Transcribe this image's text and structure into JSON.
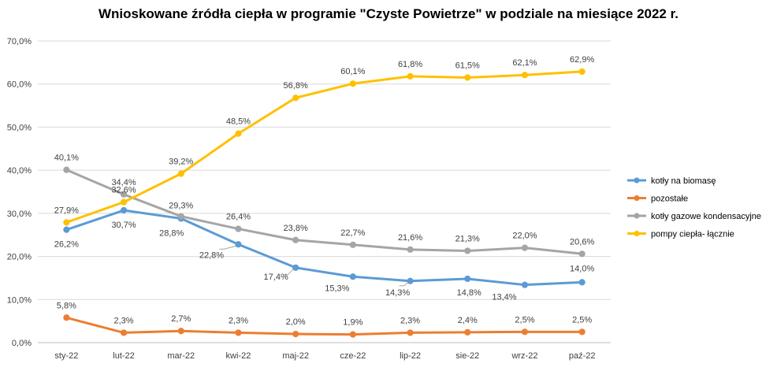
{
  "chart_data": {
    "type": "line",
    "title": "Wnioskowane źródła ciepła w programie \"Czyste Powietrze\" w podziale na miesiące 2022 r.",
    "xlabel": "",
    "ylabel": "",
    "categories": [
      "sty-22",
      "lut-22",
      "mar-22",
      "kwi-22",
      "maj-22",
      "cze-22",
      "lip-22",
      "sie-22",
      "wrz-22",
      "paź-22"
    ],
    "ylim": [
      0,
      70
    ],
    "yticks": [
      0,
      10,
      20,
      30,
      40,
      50,
      60,
      70
    ],
    "ytick_labels": [
      "0,0%",
      "10,0%",
      "20,0%",
      "30,0%",
      "40,0%",
      "50,0%",
      "60,0%",
      "70,0%"
    ],
    "grid": true,
    "legend_position": "right",
    "series": [
      {
        "name": "kotły na biomasę",
        "color": "#5B9BD5",
        "values": [
          26.2,
          30.7,
          28.8,
          22.8,
          17.4,
          15.3,
          14.3,
          14.8,
          13.4,
          14.0
        ],
        "labels": [
          "26,2%",
          "30,7%",
          "28,8%",
          "22,8%",
          "17,4%",
          "15,3%",
          "14,3%",
          "14,8%",
          "13,4%",
          "14,0%"
        ]
      },
      {
        "name": "pozostałe",
        "color": "#ED7D31",
        "values": [
          5.8,
          2.3,
          2.7,
          2.3,
          2.0,
          1.9,
          2.3,
          2.4,
          2.5,
          2.5
        ],
        "labels": [
          "5,8%",
          "2,3%",
          "2,7%",
          "2,3%",
          "2,0%",
          "1,9%",
          "2,3%",
          "2,4%",
          "2,5%",
          "2,5%"
        ]
      },
      {
        "name": "kotły gazowe kondensacyjne",
        "color": "#A5A5A5",
        "values": [
          40.1,
          34.4,
          29.3,
          26.4,
          23.8,
          22.7,
          21.6,
          21.3,
          22.0,
          20.6
        ],
        "labels": [
          "40,1%",
          "34,4%",
          "29,3%",
          "26,4%",
          "23,8%",
          "22,7%",
          "21,6%",
          "21,3%",
          "22,0%",
          "20,6%"
        ]
      },
      {
        "name": "pompy ciepła- łącznie",
        "color": "#FFC000",
        "values": [
          27.9,
          32.6,
          39.2,
          48.5,
          56.8,
          60.1,
          61.8,
          61.5,
          62.1,
          62.9
        ],
        "labels": [
          "27,9%",
          "32,6%",
          "39,2%",
          "48,5%",
          "56,8%",
          "60,1%",
          "61,8%",
          "61,5%",
          "62,1%",
          "62,9%"
        ]
      }
    ]
  }
}
